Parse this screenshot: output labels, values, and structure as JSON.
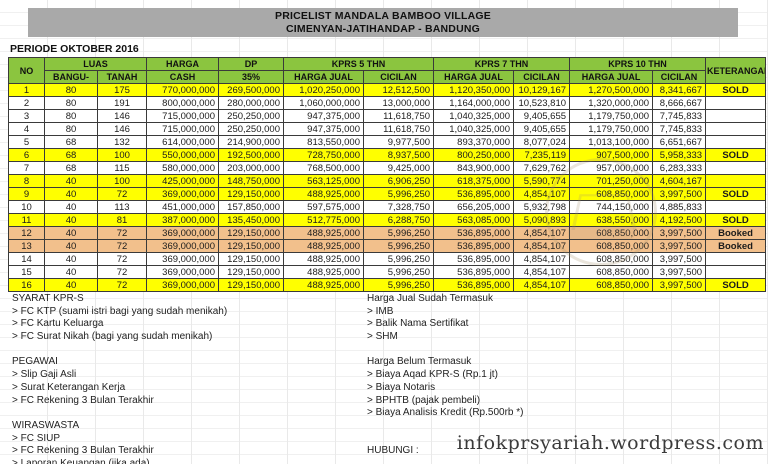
{
  "title": {
    "line1": "PRICELIST MANDALA BAMBOO VILLAGE",
    "line2": "CIMENYAN-JATIHANDAP - BANDUNG"
  },
  "periode": "PERIODE OKTOBER 2016",
  "table": {
    "headers": {
      "no": "NO",
      "luas": "LUAS",
      "bangunan": "BANGU-",
      "tanah": "TANAH",
      "harga": "HARGA",
      "cash": "CASH",
      "dp": "DP",
      "dp_pct": "35%",
      "kprs5": "KPRS 5 THN",
      "kprs7": "KPRS 7 THN",
      "kprs10": "KPRS 10 THN",
      "harga_jual": "HARGA JUAL",
      "cicilan": "CICILAN",
      "keterangan": "KETERANGAN"
    },
    "rows": [
      {
        "no": "1",
        "bangunan": "80",
        "tanah": "175",
        "harga_cash": "770,000,000",
        "dp": "269,500,000",
        "kprs5_harga_jual": "1,020,250,000",
        "kprs5_cicilan": "12,512,500",
        "kprs7_harga_jual": "1,120,350,000",
        "kprs7_cicilan": "10,129,167",
        "kprs10_harga_jual": "1,270,500,000",
        "kprs10_cicilan": "8,341,667",
        "keterangan": "SOLD",
        "row_color": "yellow"
      },
      {
        "no": "2",
        "bangunan": "80",
        "tanah": "191",
        "harga_cash": "800,000,000",
        "dp": "280,000,000",
        "kprs5_harga_jual": "1,060,000,000",
        "kprs5_cicilan": "13,000,000",
        "kprs7_harga_jual": "1,164,000,000",
        "kprs7_cicilan": "10,523,810",
        "kprs10_harga_jual": "1,320,000,000",
        "kprs10_cicilan": "8,666,667",
        "keterangan": "",
        "row_color": "white"
      },
      {
        "no": "3",
        "bangunan": "80",
        "tanah": "146",
        "harga_cash": "715,000,000",
        "dp": "250,250,000",
        "kprs5_harga_jual": "947,375,000",
        "kprs5_cicilan": "11,618,750",
        "kprs7_harga_jual": "1,040,325,000",
        "kprs7_cicilan": "9,405,655",
        "kprs10_harga_jual": "1,179,750,000",
        "kprs10_cicilan": "7,745,833",
        "keterangan": "",
        "row_color": "white"
      },
      {
        "no": "4",
        "bangunan": "80",
        "tanah": "146",
        "harga_cash": "715,000,000",
        "dp": "250,250,000",
        "kprs5_harga_jual": "947,375,000",
        "kprs5_cicilan": "11,618,750",
        "kprs7_harga_jual": "1,040,325,000",
        "kprs7_cicilan": "9,405,655",
        "kprs10_harga_jual": "1,179,750,000",
        "kprs10_cicilan": "7,745,833",
        "keterangan": "",
        "row_color": "white"
      },
      {
        "no": "5",
        "bangunan": "68",
        "tanah": "132",
        "harga_cash": "614,000,000",
        "dp": "214,900,000",
        "kprs5_harga_jual": "813,550,000",
        "kprs5_cicilan": "9,977,500",
        "kprs7_harga_jual": "893,370,000",
        "kprs7_cicilan": "8,077,024",
        "kprs10_harga_jual": "1,013,100,000",
        "kprs10_cicilan": "6,651,667",
        "keterangan": "",
        "row_color": "white"
      },
      {
        "no": "6",
        "bangunan": "68",
        "tanah": "100",
        "harga_cash": "550,000,000",
        "dp": "192,500,000",
        "kprs5_harga_jual": "728,750,000",
        "kprs5_cicilan": "8,937,500",
        "kprs7_harga_jual": "800,250,000",
        "kprs7_cicilan": "7,235,119",
        "kprs10_harga_jual": "907,500,000",
        "kprs10_cicilan": "5,958,333",
        "keterangan": "SOLD",
        "row_color": "yellow"
      },
      {
        "no": "7",
        "bangunan": "68",
        "tanah": "115",
        "harga_cash": "580,000,000",
        "dp": "203,000,000",
        "kprs5_harga_jual": "768,500,000",
        "kprs5_cicilan": "9,425,000",
        "kprs7_harga_jual": "843,900,000",
        "kprs7_cicilan": "7,629,762",
        "kprs10_harga_jual": "957,000,000",
        "kprs10_cicilan": "6,283,333",
        "keterangan": "",
        "row_color": "white"
      },
      {
        "no": "8",
        "bangunan": "40",
        "tanah": "100",
        "harga_cash": "425,000,000",
        "dp": "148,750,000",
        "kprs5_harga_jual": "563,125,000",
        "kprs5_cicilan": "6,906,250",
        "kprs7_harga_jual": "618,375,000",
        "kprs7_cicilan": "5,590,774",
        "kprs10_harga_jual": "701,250,000",
        "kprs10_cicilan": "4,604,167",
        "keterangan": "",
        "row_color": "yellow"
      },
      {
        "no": "9",
        "bangunan": "40",
        "tanah": "72",
        "harga_cash": "369,000,000",
        "dp": "129,150,000",
        "kprs5_harga_jual": "488,925,000",
        "kprs5_cicilan": "5,996,250",
        "kprs7_harga_jual": "536,895,000",
        "kprs7_cicilan": "4,854,107",
        "kprs10_harga_jual": "608,850,000",
        "kprs10_cicilan": "3,997,500",
        "keterangan": "SOLD",
        "row_color": "yellow"
      },
      {
        "no": "10",
        "bangunan": "40",
        "tanah": "113",
        "harga_cash": "451,000,000",
        "dp": "157,850,000",
        "kprs5_harga_jual": "597,575,000",
        "kprs5_cicilan": "7,328,750",
        "kprs7_harga_jual": "656,205,000",
        "kprs7_cicilan": "5,932,798",
        "kprs10_harga_jual": "744,150,000",
        "kprs10_cicilan": "4,885,833",
        "keterangan": "",
        "row_color": "white"
      },
      {
        "no": "11",
        "bangunan": "40",
        "tanah": "81",
        "harga_cash": "387,000,000",
        "dp": "135,450,000",
        "kprs5_harga_jual": "512,775,000",
        "kprs5_cicilan": "6,288,750",
        "kprs7_harga_jual": "563,085,000",
        "kprs7_cicilan": "5,090,893",
        "kprs10_harga_jual": "638,550,000",
        "kprs10_cicilan": "4,192,500",
        "keterangan": "SOLD",
        "row_color": "yellow"
      },
      {
        "no": "12",
        "bangunan": "40",
        "tanah": "72",
        "harga_cash": "369,000,000",
        "dp": "129,150,000",
        "kprs5_harga_jual": "488,925,000",
        "kprs5_cicilan": "5,996,250",
        "kprs7_harga_jual": "536,895,000",
        "kprs7_cicilan": "4,854,107",
        "kprs10_harga_jual": "608,850,000",
        "kprs10_cicilan": "3,997,500",
        "keterangan": "Booked",
        "row_color": "orange"
      },
      {
        "no": "13",
        "bangunan": "40",
        "tanah": "72",
        "harga_cash": "369,000,000",
        "dp": "129,150,000",
        "kprs5_harga_jual": "488,925,000",
        "kprs5_cicilan": "5,996,250",
        "kprs7_harga_jual": "536,895,000",
        "kprs7_cicilan": "4,854,107",
        "kprs10_harga_jual": "608,850,000",
        "kprs10_cicilan": "3,997,500",
        "keterangan": "Booked",
        "row_color": "orange"
      },
      {
        "no": "14",
        "bangunan": "40",
        "tanah": "72",
        "harga_cash": "369,000,000",
        "dp": "129,150,000",
        "kprs5_harga_jual": "488,925,000",
        "kprs5_cicilan": "5,996,250",
        "kprs7_harga_jual": "536,895,000",
        "kprs7_cicilan": "4,854,107",
        "kprs10_harga_jual": "608,850,000",
        "kprs10_cicilan": "3,997,500",
        "keterangan": "",
        "row_color": "white"
      },
      {
        "no": "15",
        "bangunan": "40",
        "tanah": "72",
        "harga_cash": "369,000,000",
        "dp": "129,150,000",
        "kprs5_harga_jual": "488,925,000",
        "kprs5_cicilan": "5,996,250",
        "kprs7_harga_jual": "536,895,000",
        "kprs7_cicilan": "4,854,107",
        "kprs10_harga_jual": "608,850,000",
        "kprs10_cicilan": "3,997,500",
        "keterangan": "",
        "row_color": "white"
      },
      {
        "no": "16",
        "bangunan": "40",
        "tanah": "72",
        "harga_cash": "369,000,000",
        "dp": "129,150,000",
        "kprs5_harga_jual": "488,925,000",
        "kprs5_cicilan": "5,996,250",
        "kprs7_harga_jual": "536,895,000",
        "kprs7_cicilan": "4,854,107",
        "kprs10_harga_jual": "608,850,000",
        "kprs10_cicilan": "3,997,500",
        "keterangan": "SOLD",
        "row_color": "yellow"
      }
    ]
  },
  "footer": {
    "left_lines": [
      "SYARAT KPR-S",
      "> FC KTP (suami istri bagi yang sudah menikah)",
      "> FC Kartu Keluarga",
      "> FC Surat Nikah (bagi yang sudah menikah)",
      "",
      "PEGAWAI",
      "> Slip Gaji Asli",
      "> Surat Keterangan Kerja",
      "> FC Rekening 3 Bulan Terakhir",
      "",
      "WIRASWASTA",
      "> FC SIUP",
      "> FC Rekening 3 Bulan Terakhir",
      "> Laporan Keuangan (jika ada)"
    ],
    "right_lines": [
      "Harga Jual Sudah Termasuk",
      "> IMB",
      "> Balik Nama Sertifikat",
      "> SHM",
      "",
      "Harga Belum Termasuk",
      "> Biaya Aqad KPR-S (Rp.1 jt)",
      "> Biaya Notaris",
      "> BPHTB (pajak pembeli)",
      "> Biaya Analisis Kredit (Rp.500rb *)",
      "",
      "",
      "HUBUNGI :"
    ]
  },
  "watermark_text": "infokprsyariah.wordpress.com",
  "colors": {
    "header_green": "#8bc53f",
    "sold_yellow": "#ffff00",
    "booked_orange": "#f2c08c",
    "title_gray": "#a9a9a9",
    "grid_line": "#e9e9e9",
    "border_dark": "#3a3a3a"
  }
}
